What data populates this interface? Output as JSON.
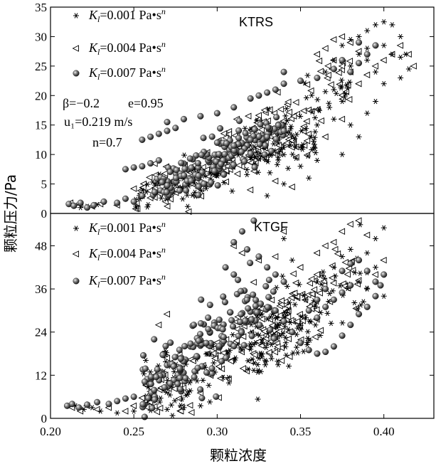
{
  "figure": {
    "ylabel": "颗粒压力/Pa",
    "xlabel": "颗粒浓度"
  },
  "chart_data": [
    {
      "type": "scatter",
      "panel_title": "KTRS",
      "xlim": [
        0.2,
        0.43
      ],
      "ylim": [
        0,
        35
      ],
      "xticks": [
        "0.20",
        "0.25",
        "0.30",
        "0.35",
        "0.40"
      ],
      "yticks": [
        "0",
        "5",
        "10",
        "15",
        "20",
        "25",
        "30",
        "35"
      ],
      "ylabel": "颗粒压力/Pa",
      "legend_position": "top-left",
      "annotations": {
        "beta": "β=−0.2",
        "e": "e=0.95",
        "u1": "u₁=0.219 m/s",
        "n": "n=0.7"
      },
      "series": [
        {
          "name": "K_l=0.001 Pa•s^n",
          "label_k": "K",
          "label_sub": "l",
          "label_value": "=0.001 Pa•s",
          "label_sup": "n",
          "marker": "asterisk",
          "clusters": [
            {
              "x0": 0.25,
              "x1": 0.36,
              "y0": 2.0,
              "y1": 13.0,
              "w": 1.8,
              "n": 140
            },
            {
              "x0": 0.3,
              "x1": 0.38,
              "y0": 9.0,
              "y1": 22.0,
              "w": 2.2,
              "n": 60
            }
          ],
          "points": [
            [
              0.215,
              1.4
            ],
            [
              0.218,
              1.0
            ],
            [
              0.222,
              1.2
            ],
            [
              0.228,
              1.5
            ],
            [
              0.365,
              24.0
            ],
            [
              0.37,
              26.0
            ],
            [
              0.375,
              28.5
            ],
            [
              0.38,
              29.5
            ],
            [
              0.385,
              30.0
            ],
            [
              0.39,
              31.0
            ],
            [
              0.395,
              32.0
            ],
            [
              0.4,
              32.5
            ],
            [
              0.405,
              32.0
            ],
            [
              0.41,
              30.0
            ],
            [
              0.413,
              27.0
            ],
            [
              0.415,
              24.5
            ],
            [
              0.41,
              23.0
            ],
            [
              0.4,
              22.0
            ],
            [
              0.395,
              24.0
            ],
            [
              0.39,
              26.0
            ],
            [
              0.385,
              27.0
            ],
            [
              0.38,
              25.0
            ],
            [
              0.39,
              28.0
            ],
            [
              0.4,
              28.5
            ],
            [
              0.405,
              27.0
            ],
            [
              0.41,
              26.5
            ],
            [
              0.36,
              15.0
            ],
            [
              0.37,
              16.0
            ],
            [
              0.375,
              10.0
            ],
            [
              0.36,
              9.0
            ],
            [
              0.35,
              8.0
            ],
            [
              0.355,
              6.0
            ],
            [
              0.34,
              5.0
            ],
            [
              0.33,
              3.0
            ],
            [
              0.37,
              21.0
            ],
            [
              0.375,
              19.0
            ],
            [
              0.38,
              15.0
            ],
            [
              0.385,
              13.0
            ],
            [
              0.39,
              17.0
            ],
            [
              0.395,
              19.0
            ]
          ]
        },
        {
          "name": "K_l=0.004 Pa•s^n",
          "label_k": "K",
          "label_sub": "l",
          "label_value": "=0.004 Pa•s",
          "label_sup": "n",
          "marker": "triangle-left",
          "clusters": [
            {
              "x0": 0.25,
              "x1": 0.355,
              "y0": 2.5,
              "y1": 14.0,
              "w": 1.8,
              "n": 130
            },
            {
              "x0": 0.3,
              "x1": 0.38,
              "y0": 10.0,
              "y1": 24.0,
              "w": 2.5,
              "n": 70
            }
          ],
          "points": [
            [
              0.212,
              1.8
            ],
            [
              0.218,
              1.5
            ],
            [
              0.225,
              1.2
            ],
            [
              0.23,
              1.6
            ],
            [
              0.24,
              1.4
            ],
            [
              0.36,
              27.0
            ],
            [
              0.365,
              28.0
            ],
            [
              0.37,
              29.5
            ],
            [
              0.375,
              30.0
            ],
            [
              0.38,
              29.0
            ],
            [
              0.385,
              27.5
            ],
            [
              0.37,
              26.0
            ],
            [
              0.375,
              25.0
            ],
            [
              0.38,
              24.0
            ],
            [
              0.385,
              22.0
            ],
            [
              0.39,
              23.5
            ],
            [
              0.395,
              25.0
            ],
            [
              0.4,
              26.0
            ],
            [
              0.405,
              27.0
            ],
            [
              0.41,
              28.5
            ],
            [
              0.415,
              27.0
            ],
            [
              0.418,
              25.0
            ],
            [
              0.375,
              16.0
            ],
            [
              0.365,
              13.0
            ],
            [
              0.345,
              4.5
            ],
            [
              0.335,
              5.5
            ],
            [
              0.32,
              4.0
            ]
          ]
        },
        {
          "name": "K_l=0.007 Pa•s^n",
          "label_k": "K",
          "label_sub": "l",
          "label_value": "=0.007 Pa•s",
          "label_sup": "n",
          "marker": "sphere",
          "clusters": [
            {
              "x0": 0.26,
              "x1": 0.34,
              "y0": 4.0,
              "y1": 14.5,
              "w": 1.8,
              "n": 150
            }
          ],
          "points": [
            [
              0.211,
              1.6
            ],
            [
              0.214,
              1.3
            ],
            [
              0.218,
              1.8
            ],
            [
              0.222,
              1.0
            ],
            [
              0.226,
              1.4
            ],
            [
              0.232,
              2.0
            ],
            [
              0.24,
              1.8
            ],
            [
              0.245,
              2.5
            ],
            [
              0.25,
              2.0
            ],
            [
              0.255,
              3.0
            ],
            [
              0.245,
              7.5
            ],
            [
              0.25,
              7.8
            ],
            [
              0.255,
              8.0
            ],
            [
              0.26,
              8.5
            ],
            [
              0.265,
              9.0
            ],
            [
              0.255,
              12.5
            ],
            [
              0.26,
              13.0
            ],
            [
              0.265,
              13.5
            ],
            [
              0.27,
              14.0
            ],
            [
              0.275,
              14.5
            ],
            [
              0.27,
              15.5
            ],
            [
              0.28,
              16.0
            ],
            [
              0.29,
              16.5
            ],
            [
              0.3,
              17.0
            ],
            [
              0.31,
              18.0
            ],
            [
              0.32,
              19.5
            ],
            [
              0.325,
              20.0
            ],
            [
              0.33,
              20.5
            ],
            [
              0.335,
              21.0
            ],
            [
              0.34,
              22.0
            ],
            [
              0.34,
              24.0
            ],
            [
              0.35,
              22.5
            ],
            [
              0.36,
              23.0
            ],
            [
              0.37,
              24.5
            ],
            [
              0.375,
              26.0
            ],
            [
              0.38,
              24.0
            ],
            [
              0.385,
              25.5
            ],
            [
              0.39,
              27.0
            ],
            [
              0.395,
              28.5
            ],
            [
              0.385,
              29.0
            ],
            [
              0.3,
              12.0
            ],
            [
              0.31,
              11.5
            ],
            [
              0.32,
              12.5
            ],
            [
              0.33,
              13.0
            ],
            [
              0.34,
              14.0
            ]
          ]
        }
      ]
    },
    {
      "type": "scatter",
      "panel_title": "KTGF",
      "xlim": [
        0.2,
        0.43
      ],
      "ylim": [
        0,
        57
      ],
      "xticks": [
        "0.20",
        "0.25",
        "0.30",
        "0.35",
        "0.40"
      ],
      "yticks": [
        "0",
        "12",
        "24",
        "36",
        "48"
      ],
      "xlabel": "颗粒浓度",
      "legend_position": "top-left",
      "series": [
        {
          "name": "K_l=0.001 Pa•s^n",
          "label_k": "K",
          "label_sub": "l",
          "label_value": "=0.001 Pa•s",
          "label_sup": "n",
          "marker": "asterisk",
          "clusters": [
            {
              "x0": 0.255,
              "x1": 0.36,
              "y0": 5.0,
              "y1": 28.0,
              "w": 5.0,
              "n": 130
            },
            {
              "x0": 0.32,
              "x1": 0.39,
              "y0": 20.0,
              "y1": 42.0,
              "w": 6.0,
              "n": 70
            }
          ],
          "points": [
            [
              0.215,
              3.5
            ],
            [
              0.22,
              2.5
            ],
            [
              0.225,
              3.0
            ],
            [
              0.23,
              2.0
            ],
            [
              0.24,
              1.5
            ],
            [
              0.25,
              2.0
            ],
            [
              0.26,
              2.2
            ],
            [
              0.27,
              2.5
            ],
            [
              0.28,
              3.0
            ],
            [
              0.29,
              3.5
            ],
            [
              0.37,
              42.0
            ],
            [
              0.375,
              45.0
            ],
            [
              0.38,
              47.0
            ],
            [
              0.385,
              44.0
            ],
            [
              0.39,
              46.0
            ],
            [
              0.395,
              50.0
            ],
            [
              0.4,
              53.0
            ],
            [
              0.395,
              42.0
            ],
            [
              0.385,
              38.0
            ],
            [
              0.39,
              36.0
            ],
            [
              0.4,
              34.0
            ],
            [
              0.36,
              38.0
            ],
            [
              0.34,
              50.0
            ],
            [
              0.345,
              44.0
            ]
          ]
        },
        {
          "name": "K_l=0.004 Pa•s^n",
          "label_k": "K",
          "label_sub": "l",
          "label_value": "=0.004 Pa•s",
          "label_sup": "n",
          "marker": "triangle-left",
          "clusters": [
            {
              "x0": 0.255,
              "x1": 0.36,
              "y0": 6.0,
              "y1": 30.0,
              "w": 5.0,
              "n": 130
            },
            {
              "x0": 0.32,
              "x1": 0.385,
              "y0": 22.0,
              "y1": 44.0,
              "w": 6.0,
              "n": 70
            }
          ],
          "points": [
            [
              0.213,
              3.0
            ],
            [
              0.218,
              2.0
            ],
            [
              0.222,
              3.5
            ],
            [
              0.228,
              2.5
            ],
            [
              0.235,
              3.0
            ],
            [
              0.245,
              2.0
            ],
            [
              0.25,
              3.5
            ],
            [
              0.26,
              4.5
            ],
            [
              0.36,
              46.0
            ],
            [
              0.365,
              48.0
            ],
            [
              0.37,
              49.0
            ],
            [
              0.375,
              52.0
            ],
            [
              0.38,
              54.0
            ],
            [
              0.385,
              55.0
            ],
            [
              0.39,
              51.0
            ],
            [
              0.4,
              44.0
            ],
            [
              0.395,
              40.0
            ],
            [
              0.36,
              40.0
            ],
            [
              0.35,
              42.0
            ],
            [
              0.31,
              48.0
            ],
            [
              0.315,
              46.0
            ],
            [
              0.325,
              44.0
            ],
            [
              0.335,
              45.0
            ],
            [
              0.265,
              26.0
            ],
            [
              0.27,
              29.0
            ],
            [
              0.26,
              10.0
            ],
            [
              0.34,
              52.0
            ]
          ]
        },
        {
          "name": "K_l=0.007 Pa•s^n",
          "label_k": "K",
          "label_sub": "l",
          "label_value": "=0.007 Pa•s",
          "label_sup": "n",
          "marker": "sphere",
          "clusters": [
            {
              "x0": 0.255,
              "x1": 0.335,
              "y0": 8.0,
              "y1": 34.0,
              "w": 5.0,
              "n": 170
            }
          ],
          "points": [
            [
              0.21,
              3.5
            ],
            [
              0.213,
              4.0
            ],
            [
              0.217,
              3.0
            ],
            [
              0.222,
              3.8
            ],
            [
              0.228,
              4.5
            ],
            [
              0.235,
              4.0
            ],
            [
              0.24,
              4.8
            ],
            [
              0.245,
              5.5
            ],
            [
              0.25,
              6.0
            ],
            [
              0.31,
              49.0
            ],
            [
              0.315,
              52.0
            ],
            [
              0.318,
              47.0
            ],
            [
              0.322,
              55.0
            ],
            [
              0.325,
              45.0
            ],
            [
              0.33,
              42.0
            ],
            [
              0.335,
              40.0
            ],
            [
              0.34,
              38.0
            ],
            [
              0.31,
              40.0
            ],
            [
              0.305,
              42.0
            ],
            [
              0.335,
              30.0
            ],
            [
              0.34,
              27.0
            ],
            [
              0.345,
              24.0
            ],
            [
              0.35,
              21.0
            ],
            [
              0.355,
              19.0
            ],
            [
              0.36,
              18.0
            ],
            [
              0.365,
              18.5
            ],
            [
              0.37,
              20.0
            ],
            [
              0.375,
              23.0
            ],
            [
              0.38,
              26.0
            ],
            [
              0.385,
              29.0
            ],
            [
              0.39,
              31.0
            ],
            [
              0.395,
              34.0
            ],
            [
              0.398,
              37.0
            ],
            [
              0.4,
              40.0
            ],
            [
              0.36,
              28.0
            ],
            [
              0.365,
              31.0
            ],
            [
              0.37,
              33.0
            ],
            [
              0.375,
              35.0
            ],
            [
              0.38,
              37.0
            ],
            [
              0.375,
              41.0
            ],
            [
              0.38,
              43.0
            ],
            [
              0.385,
              44.0
            ],
            [
              0.39,
              41.0
            ],
            [
              0.395,
              38.0
            ],
            [
              0.355,
              30.0
            ],
            [
              0.36,
              33.0
            ],
            [
              0.365,
              36.0
            ]
          ]
        }
      ]
    }
  ]
}
